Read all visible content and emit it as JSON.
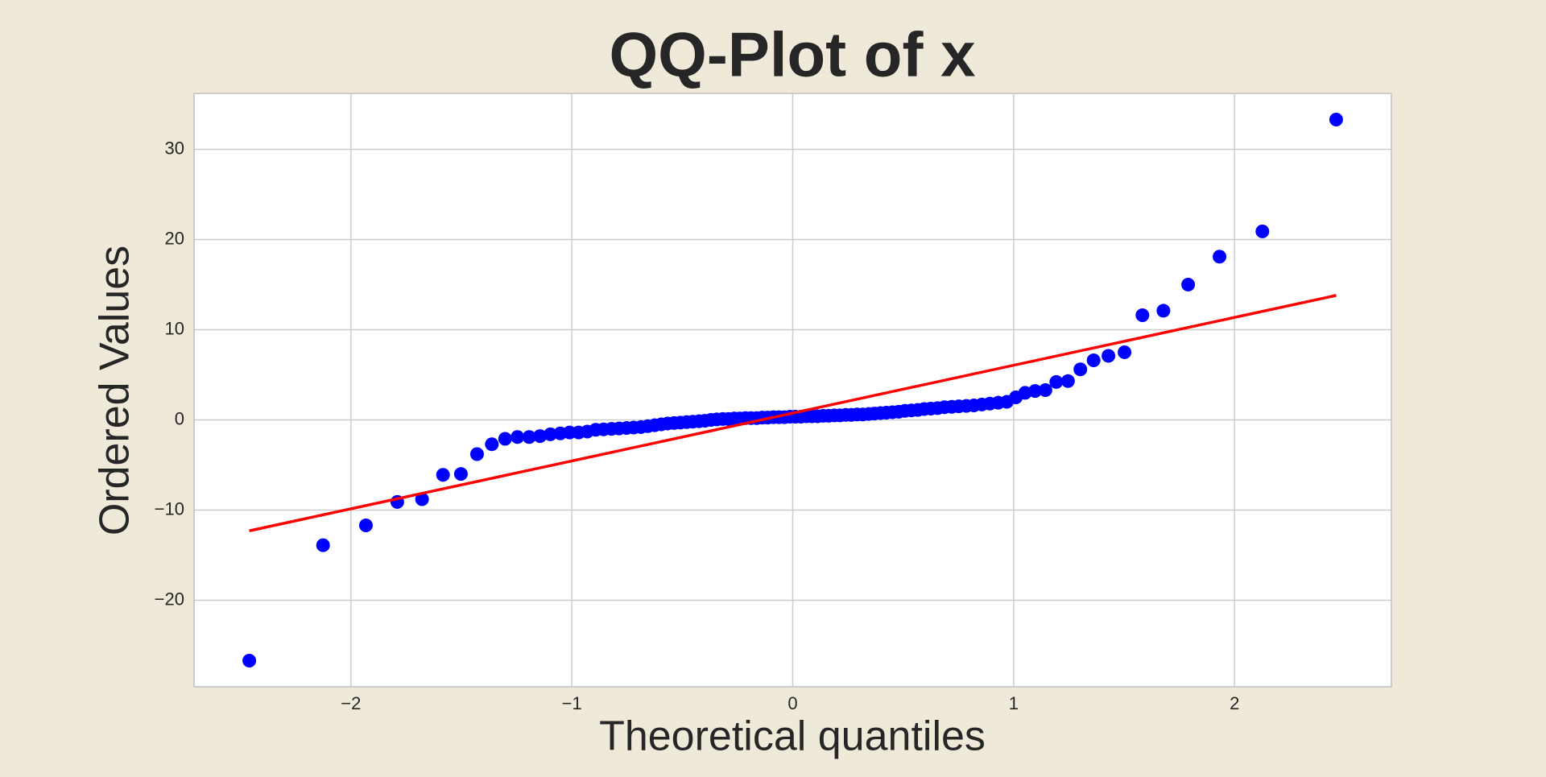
{
  "chart_data": {
    "type": "scatter",
    "title": "QQ-Plot of x",
    "x_label": "Theoretical quantiles",
    "y_label": "Ordered Values",
    "x": [
      -2.46,
      -2.126,
      -1.932,
      -1.79,
      -1.678,
      -1.583,
      -1.502,
      -1.429,
      -1.362,
      -1.302,
      -1.246,
      -1.193,
      -1.144,
      -1.097,
      -1.052,
      -1.01,
      -0.969,
      -0.93,
      -0.892,
      -0.856,
      -0.82,
      -0.786,
      -0.752,
      -0.72,
      -0.687,
      -0.656,
      -0.625,
      -0.595,
      -0.566,
      -0.537,
      -0.508,
      -0.48,
      -0.452,
      -0.424,
      -0.397,
      -0.37,
      -0.344,
      -0.317,
      -0.291,
      -0.265,
      -0.24,
      -0.214,
      -0.189,
      -0.163,
      -0.138,
      -0.113,
      -0.087,
      -0.062,
      -0.037,
      -0.012,
      0.012,
      0.037,
      0.062,
      0.087,
      0.113,
      0.138,
      0.163,
      0.189,
      0.214,
      0.24,
      0.265,
      0.291,
      0.317,
      0.344,
      0.37,
      0.397,
      0.424,
      0.452,
      0.48,
      0.508,
      0.537,
      0.566,
      0.595,
      0.625,
      0.656,
      0.687,
      0.72,
      0.752,
      0.786,
      0.82,
      0.856,
      0.892,
      0.93,
      0.969,
      1.01,
      1.052,
      1.097,
      1.144,
      1.193,
      1.246,
      1.302,
      1.362,
      1.429,
      1.502,
      1.583,
      1.678,
      1.79,
      1.932,
      2.126,
      2.46
    ],
    "values": [
      -26.7,
      -13.9,
      -11.7,
      -9.1,
      -8.8,
      -6.1,
      -6.0,
      -3.8,
      -2.7,
      -2.1,
      -1.9,
      -1.9,
      -1.8,
      -1.6,
      -1.5,
      -1.4,
      -1.4,
      -1.3,
      -1.1,
      -1.05,
      -1.0,
      -0.95,
      -0.9,
      -0.85,
      -0.8,
      -0.7,
      -0.6,
      -0.5,
      -0.4,
      -0.35,
      -0.3,
      -0.25,
      -0.2,
      -0.15,
      -0.1,
      0.0,
      0.05,
      0.1,
      0.1,
      0.15,
      0.15,
      0.2,
      0.2,
      0.2,
      0.25,
      0.25,
      0.3,
      0.3,
      0.3,
      0.35,
      0.35,
      0.35,
      0.4,
      0.4,
      0.4,
      0.45,
      0.45,
      0.5,
      0.5,
      0.55,
      0.55,
      0.6,
      0.6,
      0.65,
      0.7,
      0.75,
      0.8,
      0.85,
      0.9,
      1.0,
      1.05,
      1.1,
      1.2,
      1.25,
      1.3,
      1.4,
      1.45,
      1.5,
      1.55,
      1.6,
      1.7,
      1.8,
      1.9,
      2.0,
      2.5,
      3.0,
      3.2,
      3.3,
      4.2,
      4.3,
      5.6,
      6.6,
      7.1,
      7.5,
      11.6,
      12.1,
      15.0,
      18.1,
      20.9,
      33.3
    ],
    "color": "#0000ff",
    "fit_line": {
      "x": [
        -2.46,
        2.46
      ],
      "values": [
        -12.3,
        13.8
      ],
      "color": "#ff0000"
    },
    "xlim": [
      -2.71,
      2.71
    ],
    "ylim": [
      -29.6,
      36.2
    ],
    "xticks": [
      {
        "value": -2,
        "label": "−2"
      },
      {
        "value": -1,
        "label": "−1"
      },
      0,
      1,
      2
    ],
    "yticks": [
      {
        "value": -20,
        "label": "−20"
      },
      {
        "value": -10,
        "label": "−10"
      },
      0,
      10,
      20,
      30
    ],
    "grid": true
  }
}
